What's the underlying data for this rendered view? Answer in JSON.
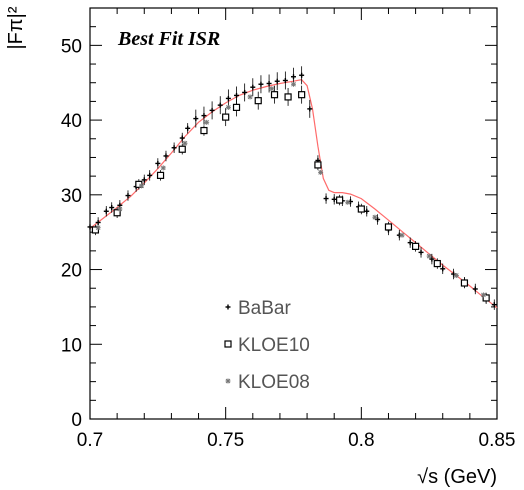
{
  "chart_data": {
    "type": "scatter",
    "title": "Best Fit ISR",
    "xlabel": "√s (GeV)",
    "ylabel": "|Fπ|²",
    "xlim": [
      0.7,
      0.85
    ],
    "ylim": [
      0,
      55
    ],
    "x_ticks": [
      "0.7",
      "0.75",
      "0.8",
      "0.85"
    ],
    "y_ticks": [
      "0",
      "10",
      "20",
      "30",
      "40",
      "50"
    ],
    "legend_placement": "bottom-center",
    "colors": {
      "fit": "#ff6b6b",
      "points": "#000000"
    },
    "series": [
      {
        "name": "BaBar",
        "marker": "cross",
        "points": [
          [
            0.7,
            25.7
          ],
          [
            0.703,
            26.3
          ],
          [
            0.706,
            27.8
          ],
          [
            0.708,
            28.3
          ],
          [
            0.711,
            28.6
          ],
          [
            0.714,
            29.9
          ],
          [
            0.717,
            31.1
          ],
          [
            0.72,
            32.0
          ],
          [
            0.722,
            32.6
          ],
          [
            0.725,
            34.2
          ],
          [
            0.728,
            35.2
          ],
          [
            0.731,
            36.3
          ],
          [
            0.734,
            37.6
          ],
          [
            0.736,
            38.9
          ],
          [
            0.739,
            40.2
          ],
          [
            0.742,
            40.6
          ],
          [
            0.745,
            41.3
          ],
          [
            0.748,
            42.0
          ],
          [
            0.751,
            42.9
          ],
          [
            0.754,
            43.3
          ],
          [
            0.757,
            43.7
          ],
          [
            0.76,
            44.4
          ],
          [
            0.763,
            44.8
          ],
          [
            0.766,
            44.9
          ],
          [
            0.769,
            45.2
          ],
          [
            0.772,
            45.3
          ],
          [
            0.775,
            45.8
          ],
          [
            0.778,
            46.0
          ],
          [
            0.781,
            41.5
          ],
          [
            0.784,
            34.6
          ],
          [
            0.787,
            29.5
          ],
          [
            0.79,
            29.4
          ],
          [
            0.793,
            29.2
          ],
          [
            0.796,
            29.1
          ],
          [
            0.799,
            28.4
          ],
          [
            0.802,
            27.8
          ],
          [
            0.806,
            26.7
          ],
          [
            0.81,
            25.3
          ],
          [
            0.814,
            24.6
          ],
          [
            0.818,
            23.6
          ],
          [
            0.822,
            22.3
          ],
          [
            0.826,
            21.4
          ],
          [
            0.83,
            20.1
          ],
          [
            0.834,
            19.4
          ],
          [
            0.838,
            18.3
          ],
          [
            0.842,
            17.4
          ],
          [
            0.846,
            16.1
          ],
          [
            0.849,
            15.3
          ]
        ]
      },
      {
        "name": "KLOE10",
        "marker": "square",
        "points": [
          [
            0.702,
            25.3
          ],
          [
            0.71,
            27.6
          ],
          [
            0.718,
            31.4
          ],
          [
            0.726,
            32.6
          ],
          [
            0.734,
            36.1
          ],
          [
            0.742,
            38.6
          ],
          [
            0.75,
            40.4
          ],
          [
            0.754,
            41.7
          ],
          [
            0.762,
            42.6
          ],
          [
            0.768,
            43.4
          ],
          [
            0.773,
            43.1
          ],
          [
            0.778,
            43.4
          ],
          [
            0.784,
            34.0
          ],
          [
            0.792,
            29.3
          ],
          [
            0.8,
            28.1
          ],
          [
            0.81,
            25.7
          ],
          [
            0.82,
            23.1
          ],
          [
            0.828,
            20.8
          ],
          [
            0.838,
            18.2
          ],
          [
            0.846,
            16.2
          ]
        ]
      },
      {
        "name": "KLOE08",
        "marker": "asterisk",
        "points": [
          [
            0.703,
            25.6
          ],
          [
            0.711,
            28.1
          ],
          [
            0.719,
            31.2
          ],
          [
            0.727,
            33.6
          ],
          [
            0.735,
            36.9
          ],
          [
            0.743,
            39.7
          ],
          [
            0.751,
            41.7
          ],
          [
            0.759,
            43.1
          ],
          [
            0.767,
            44.2
          ],
          [
            0.775,
            44.8
          ],
          [
            0.785,
            33.0
          ],
          [
            0.795,
            29.0
          ],
          [
            0.805,
            27.0
          ],
          [
            0.815,
            24.6
          ],
          [
            0.825,
            21.8
          ],
          [
            0.835,
            19.2
          ],
          [
            0.845,
            16.6
          ]
        ]
      }
    ],
    "fit_curve": {
      "points": [
        [
          0.7,
          25.5
        ],
        [
          0.705,
          26.9
        ],
        [
          0.71,
          28.3
        ],
        [
          0.715,
          29.8
        ],
        [
          0.72,
          31.6
        ],
        [
          0.725,
          33.5
        ],
        [
          0.73,
          35.6
        ],
        [
          0.735,
          37.8
        ],
        [
          0.74,
          39.7
        ],
        [
          0.745,
          41.1
        ],
        [
          0.75,
          42.3
        ],
        [
          0.755,
          43.3
        ],
        [
          0.76,
          44.0
        ],
        [
          0.765,
          44.5
        ],
        [
          0.77,
          44.9
        ],
        [
          0.775,
          45.2
        ],
        [
          0.778,
          45.4
        ],
        [
          0.78,
          44.6
        ],
        [
          0.782,
          41.5
        ],
        [
          0.784,
          36.5
        ],
        [
          0.786,
          32.2
        ],
        [
          0.788,
          30.6
        ],
        [
          0.79,
          30.3
        ],
        [
          0.793,
          30.3
        ],
        [
          0.796,
          30.1
        ],
        [
          0.8,
          29.5
        ],
        [
          0.805,
          28.1
        ],
        [
          0.81,
          26.6
        ],
        [
          0.815,
          25.1
        ],
        [
          0.82,
          23.6
        ],
        [
          0.825,
          22.1
        ],
        [
          0.83,
          20.6
        ],
        [
          0.835,
          19.2
        ],
        [
          0.84,
          17.8
        ],
        [
          0.845,
          16.3
        ],
        [
          0.85,
          14.9
        ]
      ]
    }
  }
}
